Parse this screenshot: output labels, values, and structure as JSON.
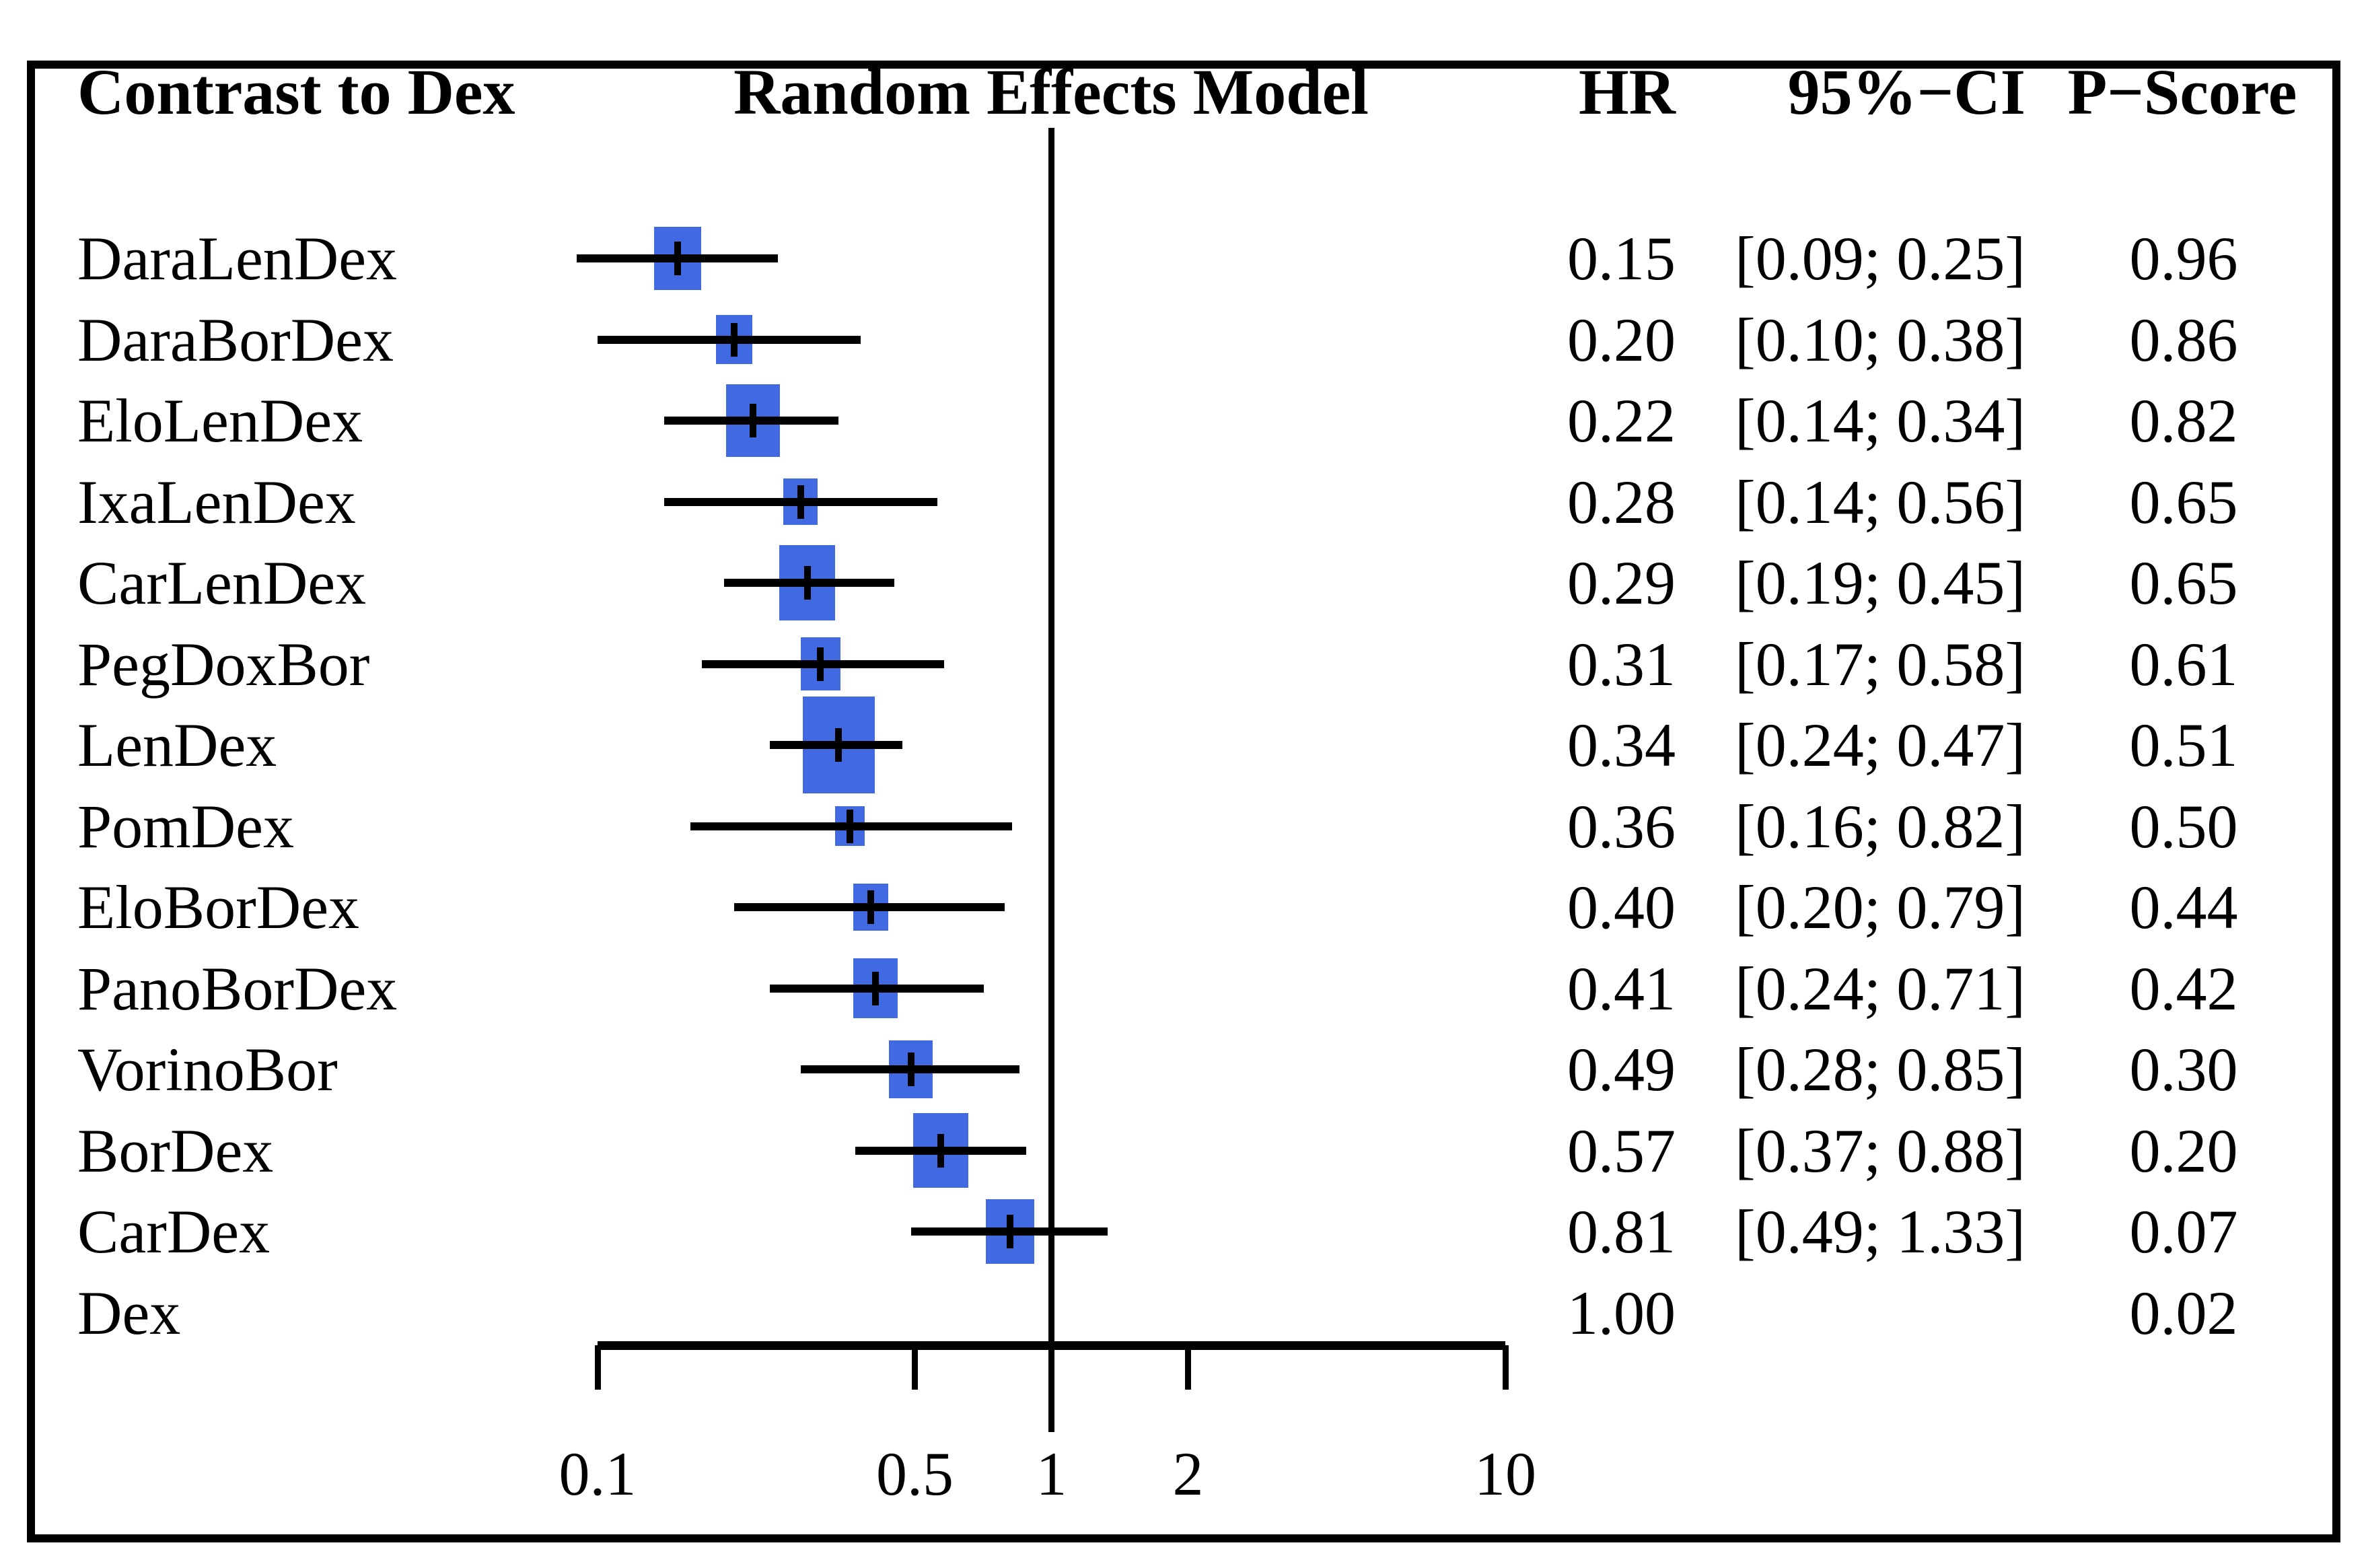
{
  "chart_data": {
    "type": "forest",
    "comparator_label": "Contrast to Dex",
    "model_label": "Random Effects Model",
    "columns": {
      "hr": "HR",
      "ci": "95%−CI",
      "pscore": "P−Score"
    },
    "x_axis": {
      "scale": "log",
      "range": [
        0.1,
        10
      ],
      "ticks": [
        0.1,
        0.5,
        1,
        2,
        10
      ],
      "tick_labels": [
        "0.1",
        "0.5",
        "1",
        "2",
        "10"
      ],
      "ref_line": 1
    },
    "square_color": "#4169E1",
    "line_color": "#000000",
    "rows": [
      {
        "label": "DaraLenDex",
        "hr": 0.15,
        "ci_lower": 0.09,
        "ci_upper": 0.25,
        "p_score": 0.96,
        "hr_text": "0.15",
        "ci_text": "[0.09; 0.25]",
        "p_text": "0.96"
      },
      {
        "label": "DaraBorDex",
        "hr": 0.2,
        "ci_lower": 0.1,
        "ci_upper": 0.38,
        "p_score": 0.86,
        "hr_text": "0.20",
        "ci_text": "[0.10; 0.38]",
        "p_text": "0.86"
      },
      {
        "label": "EloLenDex",
        "hr": 0.22,
        "ci_lower": 0.14,
        "ci_upper": 0.34,
        "p_score": 0.82,
        "hr_text": "0.22",
        "ci_text": "[0.14; 0.34]",
        "p_text": "0.82"
      },
      {
        "label": "IxaLenDex",
        "hr": 0.28,
        "ci_lower": 0.14,
        "ci_upper": 0.56,
        "p_score": 0.65,
        "hr_text": "0.28",
        "ci_text": "[0.14; 0.56]",
        "p_text": "0.65"
      },
      {
        "label": "CarLenDex",
        "hr": 0.29,
        "ci_lower": 0.19,
        "ci_upper": 0.45,
        "p_score": 0.65,
        "hr_text": "0.29",
        "ci_text": "[0.19; 0.45]",
        "p_text": "0.65"
      },
      {
        "label": "PegDoxBor",
        "hr": 0.31,
        "ci_lower": 0.17,
        "ci_upper": 0.58,
        "p_score": 0.61,
        "hr_text": "0.31",
        "ci_text": "[0.17; 0.58]",
        "p_text": "0.61"
      },
      {
        "label": "LenDex",
        "hr": 0.34,
        "ci_lower": 0.24,
        "ci_upper": 0.47,
        "p_score": 0.51,
        "hr_text": "0.34",
        "ci_text": "[0.24; 0.47]",
        "p_text": "0.51"
      },
      {
        "label": "PomDex",
        "hr": 0.36,
        "ci_lower": 0.16,
        "ci_upper": 0.82,
        "p_score": 0.5,
        "hr_text": "0.36",
        "ci_text": "[0.16; 0.82]",
        "p_text": "0.50"
      },
      {
        "label": "EloBorDex",
        "hr": 0.4,
        "ci_lower": 0.2,
        "ci_upper": 0.79,
        "p_score": 0.44,
        "hr_text": "0.40",
        "ci_text": "[0.20; 0.79]",
        "p_text": "0.44"
      },
      {
        "label": "PanoBorDex",
        "hr": 0.41,
        "ci_lower": 0.24,
        "ci_upper": 0.71,
        "p_score": 0.42,
        "hr_text": "0.41",
        "ci_text": "[0.24; 0.71]",
        "p_text": "0.42"
      },
      {
        "label": "VorinoBor",
        "hr": 0.49,
        "ci_lower": 0.28,
        "ci_upper": 0.85,
        "p_score": 0.3,
        "hr_text": "0.49",
        "ci_text": "[0.28; 0.85]",
        "p_text": "0.30"
      },
      {
        "label": "BorDex",
        "hr": 0.57,
        "ci_lower": 0.37,
        "ci_upper": 0.88,
        "p_score": 0.2,
        "hr_text": "0.57",
        "ci_text": "[0.37; 0.88]",
        "p_text": "0.20"
      },
      {
        "label": "CarDex",
        "hr": 0.81,
        "ci_lower": 0.49,
        "ci_upper": 1.33,
        "p_score": 0.07,
        "hr_text": "0.81",
        "ci_text": "[0.49; 1.33]",
        "p_text": "0.07"
      },
      {
        "label": "Dex",
        "hr": 1.0,
        "ci_lower": null,
        "ci_upper": null,
        "p_score": 0.02,
        "hr_text": "1.00",
        "ci_text": "",
        "p_text": "0.02"
      }
    ]
  }
}
